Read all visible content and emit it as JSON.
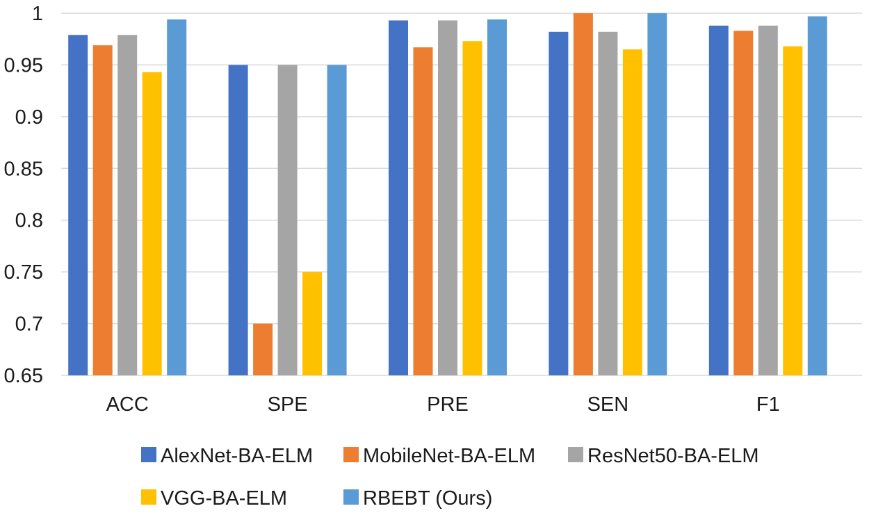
{
  "chart_data": {
    "type": "bar",
    "title": "",
    "xlabel": "",
    "ylabel": "",
    "ylim": [
      0.65,
      1.0
    ],
    "yticks": [
      "0.65",
      "0.7",
      "0.75",
      "0.8",
      "0.85",
      "0.9",
      "0.95",
      "1"
    ],
    "ytick_values": [
      0.65,
      0.7,
      0.75,
      0.8,
      0.85,
      0.9,
      0.95,
      1.0
    ],
    "grid": true,
    "legend_position": "bottom",
    "categories": [
      "ACC",
      "SPE",
      "PRE",
      "SEN",
      "F1"
    ],
    "series": [
      {
        "name": "AlexNet-BA-ELM",
        "color": "#4472C4",
        "values": [
          0.979,
          0.95,
          0.993,
          0.982,
          0.988
        ]
      },
      {
        "name": "MobileNet-BA-ELM",
        "color": "#ED7D31",
        "values": [
          0.969,
          0.7,
          0.967,
          1.0,
          0.983
        ]
      },
      {
        "name": "ResNet50-BA-ELM",
        "color": "#A5A5A5",
        "values": [
          0.979,
          0.95,
          0.993,
          0.982,
          0.988
        ]
      },
      {
        "name": "VGG-BA-ELM",
        "color": "#FFC000",
        "values": [
          0.943,
          0.75,
          0.973,
          0.965,
          0.968
        ]
      },
      {
        "name": "RBEBT (Ours)",
        "color": "#5B9BD5",
        "values": [
          0.994,
          0.95,
          0.994,
          1.0,
          0.997
        ]
      }
    ]
  }
}
